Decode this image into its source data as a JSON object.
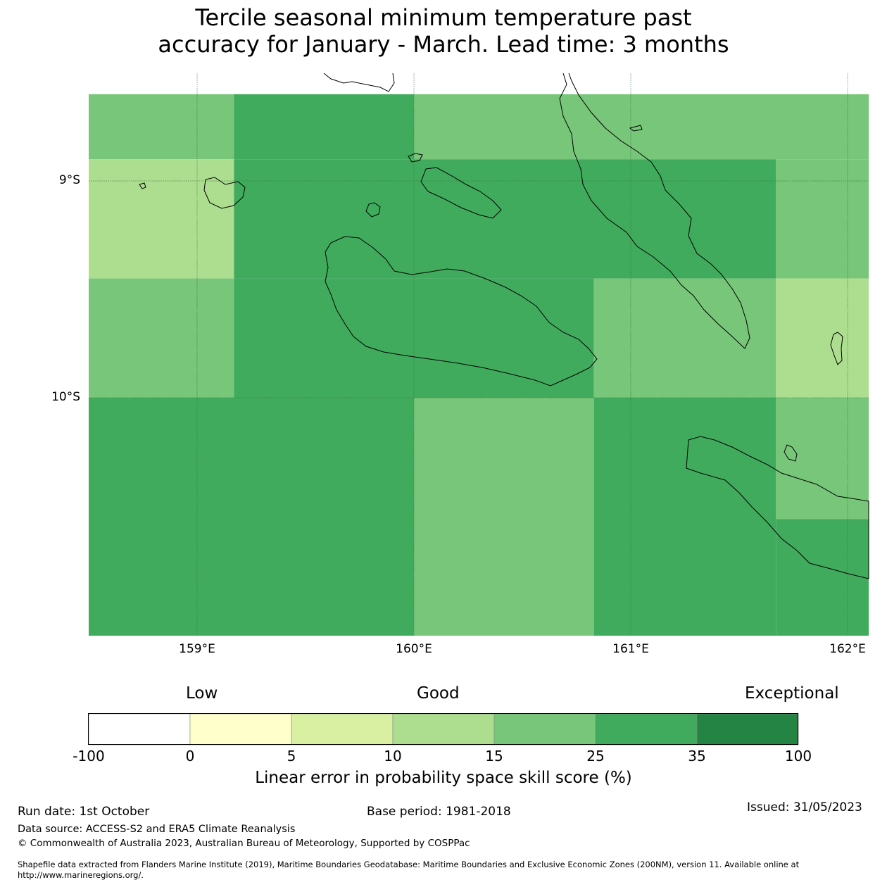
{
  "title": {
    "line1": "Tercile seasonal minimum temperature past",
    "line2": "accuracy for January - March. Lead time: 3 months"
  },
  "map": {
    "lat_labels": [
      "9°S",
      "10°S"
    ],
    "lon_labels": [
      "159°E",
      "160°E",
      "161°E",
      "162°E"
    ],
    "colors": {
      "c10_15": "#addd8e",
      "c15_25": "#78c679",
      "c25_35": "#41ab5d"
    },
    "cells": [
      {
        "lon": [
          158.5,
          159.17
        ],
        "lat": [
          -8.6,
          -8.9
        ],
        "cls": "c15_25"
      },
      {
        "lon": [
          159.17,
          160.0
        ],
        "lat": [
          -8.6,
          -8.9
        ],
        "cls": "c25_35"
      },
      {
        "lon": [
          160.0,
          162.1
        ],
        "lat": [
          -8.6,
          -8.9
        ],
        "cls": "c15_25"
      },
      {
        "lon": [
          158.5,
          159.17
        ],
        "lat": [
          -8.9,
          -9.45
        ],
        "cls": "c10_15"
      },
      {
        "lon": [
          159.17,
          160.0
        ],
        "lat": [
          -8.9,
          -9.45
        ],
        "cls": "c25_35"
      },
      {
        "lon": [
          160.0,
          161.67
        ],
        "lat": [
          -8.9,
          -9.45
        ],
        "cls": "c25_35"
      },
      {
        "lon": [
          161.67,
          162.1
        ],
        "lat": [
          -8.9,
          -9.45
        ],
        "cls": "c15_25"
      },
      {
        "lon": [
          158.5,
          159.17
        ],
        "lat": [
          -9.45,
          -10.0
        ],
        "cls": "c15_25"
      },
      {
        "lon": [
          159.17,
          160.83
        ],
        "lat": [
          -9.45,
          -10.0
        ],
        "cls": "c25_35"
      },
      {
        "lon": [
          160.83,
          161.67
        ],
        "lat": [
          -9.45,
          -10.0
        ],
        "cls": "c15_25"
      },
      {
        "lon": [
          161.67,
          162.1
        ],
        "lat": [
          -9.45,
          -10.0
        ],
        "cls": "c10_15"
      },
      {
        "lon": [
          158.5,
          160.0
        ],
        "lat": [
          -10.0,
          -11.1
        ],
        "cls": "c25_35"
      },
      {
        "lon": [
          160.0,
          160.83
        ],
        "lat": [
          -10.0,
          -11.1
        ],
        "cls": "c15_25"
      },
      {
        "lon": [
          160.83,
          161.67
        ],
        "lat": [
          -10.0,
          -11.1
        ],
        "cls": "c25_35"
      },
      {
        "lon": [
          161.67,
          162.1
        ],
        "lat": [
          -10.0,
          -10.56
        ],
        "cls": "c15_25"
      },
      {
        "lon": [
          161.67,
          162.1
        ],
        "lat": [
          -10.56,
          -11.1
        ],
        "cls": "c25_35"
      }
    ]
  },
  "colorbar": {
    "category_low": "Low",
    "category_good": "Good",
    "category_exceptional": "Exceptional",
    "ticks": [
      "-100",
      "0",
      "5",
      "10",
      "15",
      "25",
      "35",
      "100"
    ],
    "colors": [
      "#ffffff",
      "#ffffcc",
      "#d9f0a3",
      "#addd8e",
      "#78c679",
      "#41ab5d",
      "#238443"
    ],
    "label": "Linear error in probability space skill score (%)"
  },
  "footer": {
    "run_date": "Run date: 1st October",
    "base_period": "Base period: 1981-2018",
    "issued": "Issued: 31/05/2023",
    "data_source": "Data source: ACCESS-S2 and ERA5 Climate Reanalysis",
    "copyright": "© Commonwealth of Australia 2023, Australian Bureau of Meteorology, Supported by COSPPac",
    "shapefile_line1": "Shapefile data extracted from Flanders Marine Institute (2019), Maritime Boundaries Geodatabase: Maritime Boundaries and Exclusive Economic Zones (200NM), version 11. Available online at",
    "shapefile_line2": "http://www.marineregions.org/."
  }
}
